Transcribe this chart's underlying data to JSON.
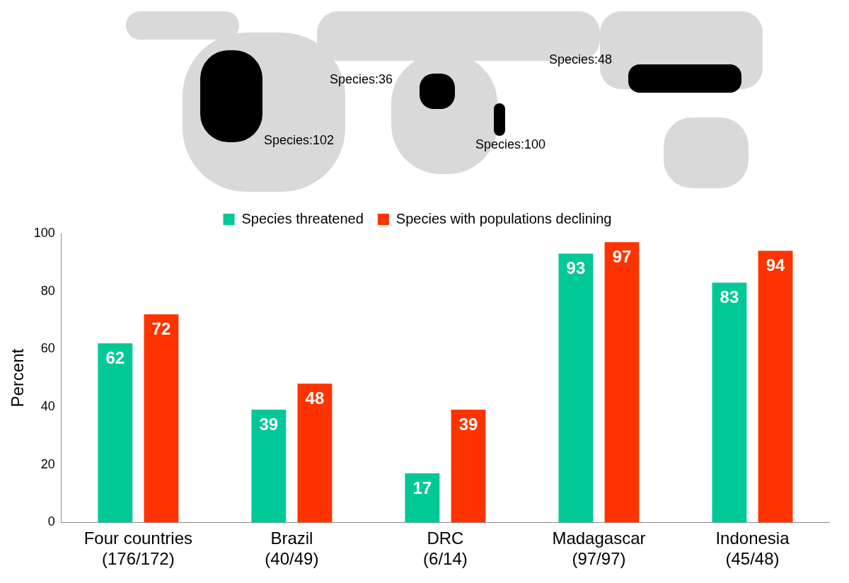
{
  "chart_data": {
    "type": "bar",
    "ylabel": "Percent",
    "categories": [
      "Four countries\n(176/172)",
      "Brazil\n(40/49)",
      "DRC\n(6/14)",
      "Madagascar\n(97/97)",
      "Indonesia\n(45/48)"
    ],
    "series": [
      {
        "name": "Species threatened",
        "color": "#00c896",
        "values": [
          62,
          39,
          17,
          93,
          83
        ]
      },
      {
        "name": "Species with populations declining",
        "color": "#ff3300",
        "values": [
          72,
          48,
          39,
          97,
          94
        ]
      }
    ],
    "ylim": [
      0,
      100
    ],
    "yticks": [
      0,
      20,
      40,
      60,
      80,
      100
    ],
    "grid": false,
    "legend": "top",
    "data_labels": true,
    "annotations": [
      "Species:102",
      "Species:36",
      "Species:100",
      "Species:48"
    ]
  }
}
